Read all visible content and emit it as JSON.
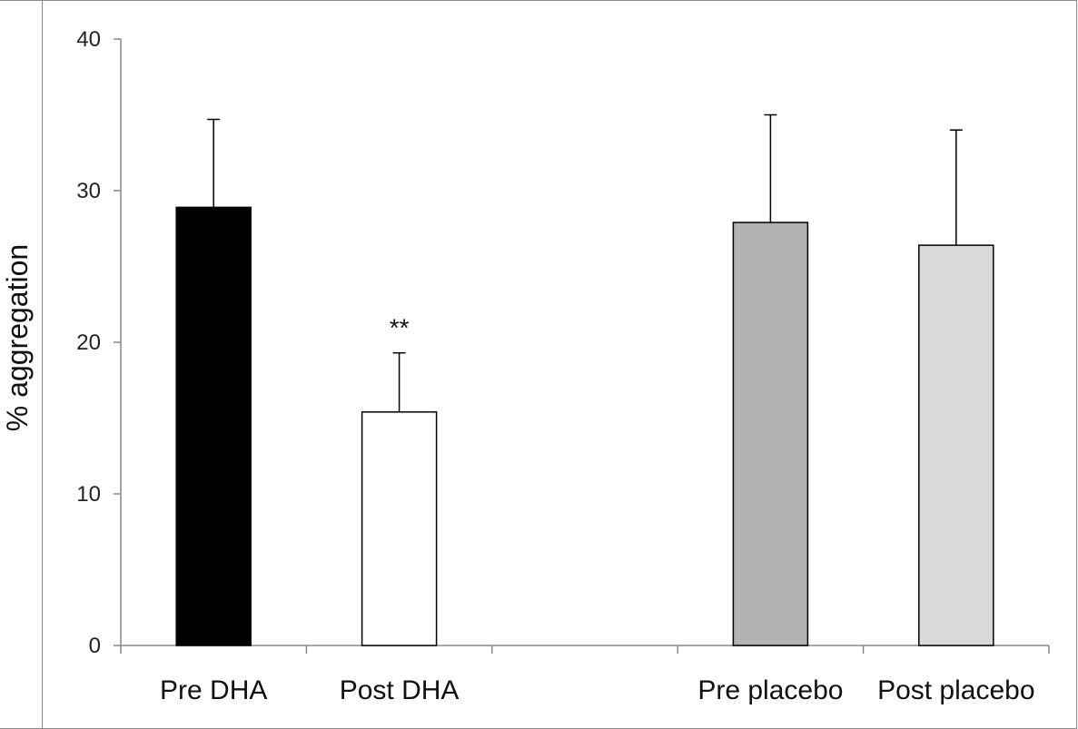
{
  "chart_data": {
    "type": "bar",
    "categories": [
      "Pre DHA",
      "Post DHA",
      "",
      "Pre placebo",
      "Post placebo"
    ],
    "values": [
      28.9,
      15.4,
      null,
      27.9,
      26.4
    ],
    "errors": [
      5.8,
      3.9,
      null,
      7.1,
      7.6
    ],
    "colors": [
      "#000000",
      "#ffffff",
      null,
      "#b3b3b3",
      "#d9d9d9"
    ],
    "annotations": [
      {
        "category": "Post DHA",
        "text": "**"
      }
    ],
    "ylabel": "% aggregation",
    "xlabel": "",
    "title": "",
    "ylim": [
      0,
      40
    ],
    "yticks": [
      "0",
      "10",
      "20",
      "30",
      "40"
    ],
    "grid": false
  }
}
